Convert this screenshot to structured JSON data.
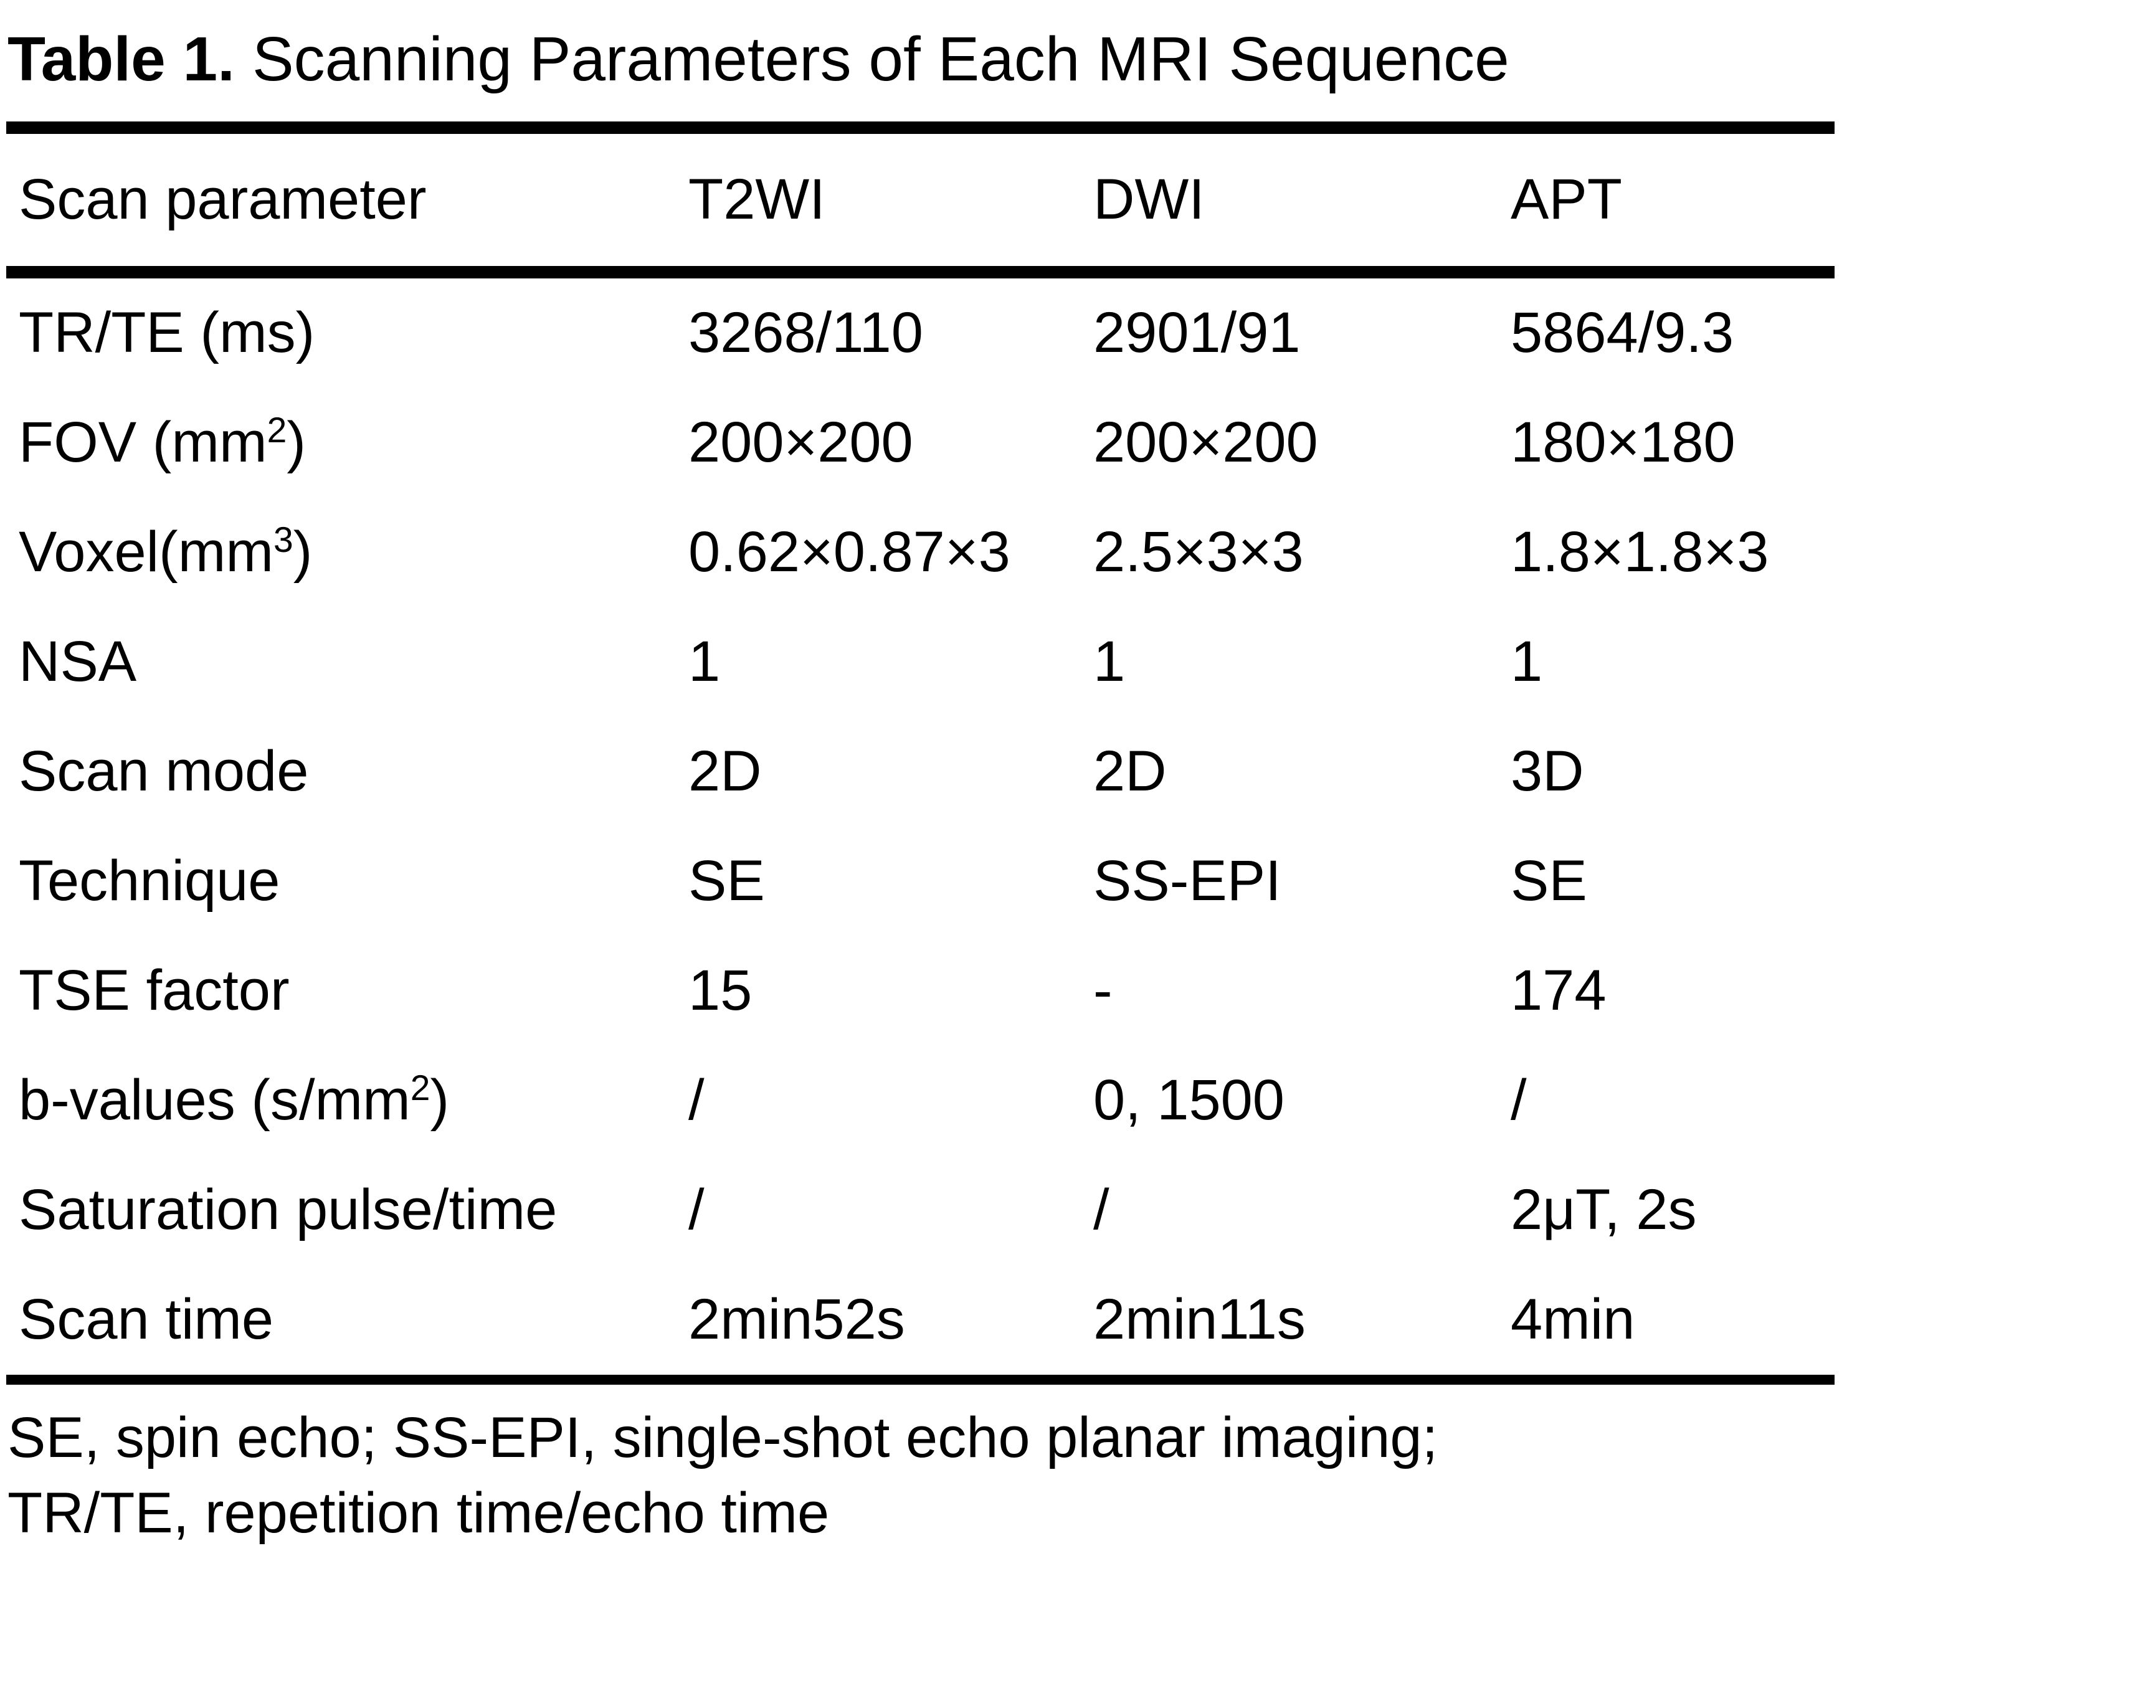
{
  "page": {
    "background_color": "#ffffff",
    "text_color": "#000000"
  },
  "title": {
    "label": "Table 1.",
    "text": "Scanning Parameters of Each MRI Sequence"
  },
  "table": {
    "columns": [
      "Scan parameter",
      "T2WI",
      "DWI",
      "APT"
    ],
    "rows": [
      [
        "TR/TE (ms)",
        "3268/110",
        "2901/91",
        "5864/9.3"
      ],
      [
        "FOV (mm^{2})",
        "200×200",
        "200×200",
        "180×180"
      ],
      [
        "Voxel(mm^{3})",
        "0.62×0.87×3",
        "2.5×3×3",
        "1.8×1.8×3"
      ],
      [
        "NSA",
        "1",
        "1",
        "1"
      ],
      [
        "Scan mode",
        "2D",
        "2D",
        "3D"
      ],
      [
        "Technique",
        "SE",
        "SS-EPI",
        "SE"
      ],
      [
        "TSE factor",
        "15",
        "-",
        "174"
      ],
      [
        "b-values (s/mm^{2})",
        "/",
        "0, 1500",
        "/"
      ],
      [
        "Saturation pulse/time",
        "/",
        "/",
        "2μT, 2s"
      ],
      [
        "Scan time",
        "2min52s",
        "2min11s",
        "4min"
      ]
    ]
  },
  "footnotes": [
    "SE, spin echo; SS-EPI, single-shot echo planar imaging;",
    "TR/TE, repetition time/echo time"
  ]
}
